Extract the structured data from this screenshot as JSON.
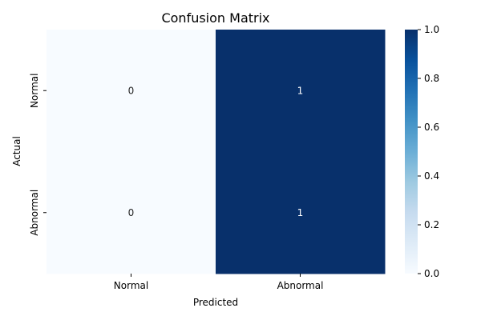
{
  "chart_data": {
    "type": "heatmap",
    "title": "Confusion Matrix",
    "xlabel": "Predicted",
    "ylabel": "Actual",
    "x_categories": [
      "Normal",
      "Abnormal"
    ],
    "y_categories": [
      "Normal",
      "Abnormal"
    ],
    "values": [
      [
        0,
        1
      ],
      [
        0,
        1
      ]
    ],
    "annotations": [
      [
        "0",
        "1"
      ],
      [
        "0",
        "1"
      ]
    ],
    "colorbar": {
      "range": [
        0.0,
        1.0
      ],
      "ticks": [
        "0.0",
        "0.2",
        "0.4",
        "0.6",
        "0.8",
        "1.0"
      ],
      "colormap": "Blues",
      "low_color": "#f7fbff",
      "high_color": "#08306b"
    },
    "grid": false,
    "legend": "colorbar-right"
  }
}
